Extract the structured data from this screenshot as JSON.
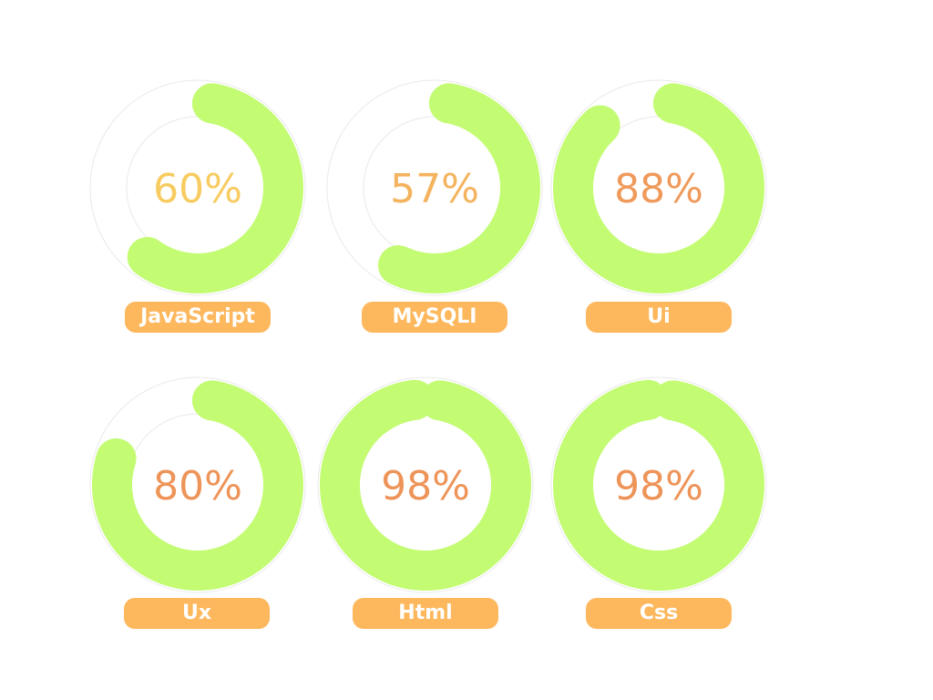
{
  "colors": {
    "arc": "#c3fb73",
    "track": "#e9e9e9",
    "label_bg": "#fdb75c",
    "label_text": "#ffffff"
  },
  "chart_data": [
    {
      "type": "donut",
      "label": "JavaScript",
      "value": 60,
      "display": "60%",
      "value_color": "#f7cb5f"
    },
    {
      "type": "donut",
      "label": "MySQLI",
      "value": 57,
      "display": "57%",
      "value_color": "#f4b35e"
    },
    {
      "type": "donut",
      "label": "Ui",
      "value": 88,
      "display": "88%",
      "value_color": "#ef9a5a"
    },
    {
      "type": "donut",
      "label": "Ux",
      "value": 80,
      "display": "80%",
      "value_color": "#ee9458"
    },
    {
      "type": "donut",
      "label": "Html",
      "value": 98,
      "display": "98%",
      "value_color": "#ee9458"
    },
    {
      "type": "donut",
      "label": "Css",
      "value": 98,
      "display": "98%",
      "value_color": "#ee9458"
    }
  ]
}
